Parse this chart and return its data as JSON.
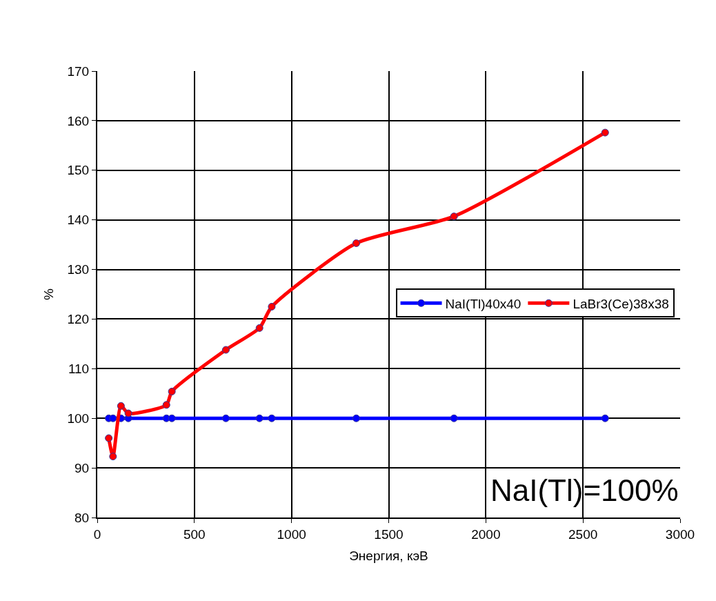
{
  "chart_data": {
    "type": "line",
    "xlabel": "Энергия, кэВ",
    "ylabel": "%",
    "x": [
      59,
      81,
      122,
      160,
      356,
      384,
      662,
      835,
      898,
      1333,
      1836,
      2614
    ],
    "series": [
      {
        "name": "NaI(Tl)40x40",
        "color": "#0000ff",
        "values": [
          100,
          100,
          100,
          100,
          100,
          100,
          100,
          100,
          100,
          100,
          100,
          100
        ]
      },
      {
        "name": "LaBr3(Ce)38x38",
        "color": "#ff0000",
        "values": [
          96,
          92.3,
          102.5,
          101,
          102.7,
          105.4,
          113.8,
          118.2,
          122.5,
          135.3,
          140.7,
          157.6
        ]
      }
    ],
    "xlim": [
      0,
      3000
    ],
    "xticks": [
      0,
      500,
      1000,
      1500,
      2000,
      2500,
      3000
    ],
    "ylim": [
      80,
      170
    ],
    "yticks": [
      80,
      90,
      100,
      110,
      120,
      130,
      140,
      150,
      160,
      170
    ],
    "grid": true,
    "legend": "right",
    "marker": "circle",
    "line_style": "solid",
    "annotations": [
      "NaI(Tl)=100%"
    ]
  }
}
